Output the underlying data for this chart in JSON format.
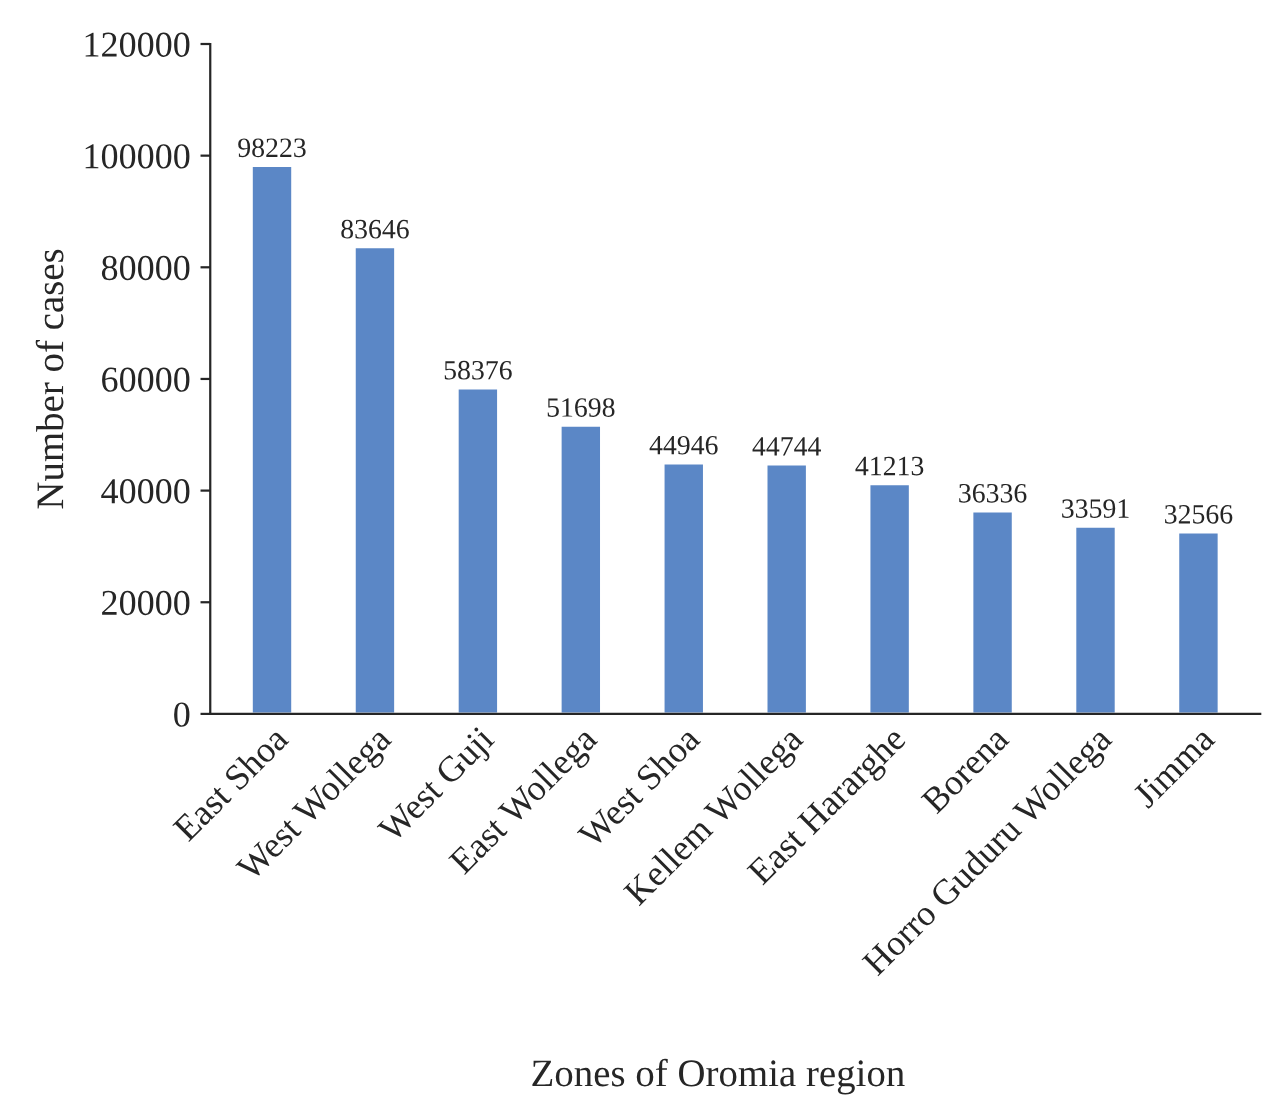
{
  "chart_data": {
    "type": "bar",
    "xlabel": "Zones of Oromia region",
    "ylabel": "Number of cases",
    "categories": [
      "East Shoa",
      "West Wollega",
      "West Guji",
      "East Wollega",
      "West Shoa",
      "Kellem Wollega",
      "East Hararghe",
      "Borena",
      "Horro Guduru Wollega",
      "Jimma"
    ],
    "values": [
      98223,
      83646,
      58376,
      51698,
      44946,
      44744,
      41213,
      36336,
      33591,
      32566
    ],
    "color": "#5b87c6",
    "ylim": [
      0,
      120000
    ],
    "yticks": [
      0,
      20000,
      40000,
      60000,
      80000,
      100000,
      120000
    ],
    "data_labels": true,
    "grid": false,
    "legend": false
  }
}
